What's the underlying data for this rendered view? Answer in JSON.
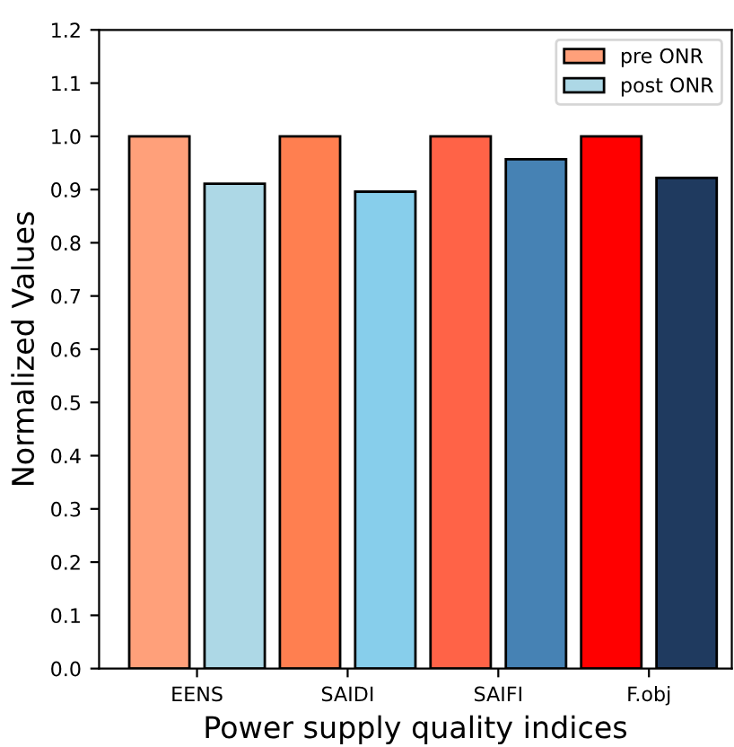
{
  "chart_data": {
    "type": "bar",
    "xlabel": "Power supply quality indices",
    "ylabel": "Normalized Values",
    "categories": [
      "EENS",
      "SAIDI",
      "SAIFI",
      "F.obj"
    ],
    "series": [
      {
        "name": "pre ONR",
        "color": "#ffa07a",
        "colors": [
          "#ffa07a",
          "#ff7f50",
          "#ff6347",
          "#ff0000"
        ],
        "values": [
          1.0,
          1.0,
          1.0,
          1.0
        ]
      },
      {
        "name": "post ONR",
        "color": "#add8e6",
        "colors": [
          "#add8e6",
          "#87ceeb",
          "#4682b4",
          "#1f3a5f"
        ],
        "values": [
          0.911,
          0.896,
          0.957,
          0.922
        ]
      }
    ],
    "ylim": [
      0,
      1.2
    ],
    "yticks": [
      {
        "value": 0,
        "label": "0.0"
      },
      0.1,
      0.2,
      0.3,
      0.4,
      0.5,
      0.6,
      0.7,
      0.8,
      0.9,
      {
        "value": 1,
        "label": "1.0"
      },
      1.1,
      1.2
    ],
    "grid": false,
    "legend": "top right"
  }
}
